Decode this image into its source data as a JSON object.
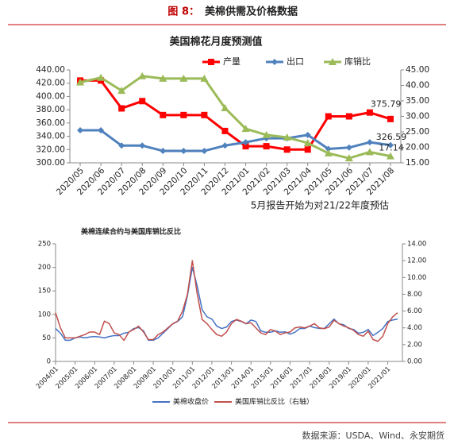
{
  "header": {
    "label": "图 8：",
    "title": "美棉供需及价格数据"
  },
  "chart_data": [
    {
      "type": "line",
      "title": "美国棉花月度预测值",
      "categories": [
        "2020/05",
        "2020/06",
        "2020/07",
        "2020/08",
        "2020/09",
        "2020/10",
        "2020/11",
        "2020/12",
        "2021/01",
        "2021/02",
        "2021/03",
        "2021/04",
        "2021/05",
        "2021/06",
        "2021/07",
        "2021/08"
      ],
      "series": [
        {
          "name": "产量",
          "color": "#ff0000",
          "marker": "square",
          "axis": "y",
          "values": [
            424,
            424,
            382,
            393,
            372,
            372,
            372,
            348,
            325,
            325,
            320,
            320,
            370,
            370,
            375.79,
            366
          ],
          "value_labels": [
            null,
            null,
            null,
            null,
            null,
            null,
            null,
            null,
            null,
            null,
            null,
            null,
            null,
            null,
            "375.79",
            null
          ]
        },
        {
          "name": "出口",
          "color": "#4f81bd",
          "marker": "diamond",
          "axis": "y",
          "values": [
            349,
            349,
            326,
            326,
            318,
            318,
            318,
            326,
            331,
            337,
            337,
            342,
            321,
            323,
            331,
            326.59
          ],
          "value_labels": [
            null,
            null,
            null,
            null,
            null,
            null,
            null,
            null,
            null,
            null,
            null,
            null,
            null,
            null,
            null,
            "326.59"
          ]
        },
        {
          "name": "库销比",
          "color": "#9bbb59",
          "marker": "triangle",
          "axis": "y2",
          "values": [
            41,
            42.5,
            38.3,
            43,
            42.2,
            42.2,
            42.2,
            32.7,
            26,
            24,
            23.2,
            21.4,
            18.1,
            16.5,
            18.5,
            17.14
          ],
          "value_labels": [
            null,
            null,
            null,
            null,
            null,
            null,
            null,
            null,
            null,
            null,
            null,
            null,
            null,
            null,
            null,
            "17.14"
          ]
        }
      ],
      "ylim": [
        300,
        440
      ],
      "yticks": [
        {
          "value": 300,
          "label": "300.00"
        },
        {
          "value": 320,
          "label": "320.00"
        },
        {
          "value": 340,
          "label": "340.00"
        },
        {
          "value": 360,
          "label": "360.00"
        },
        {
          "value": 380,
          "label": "380.00"
        },
        {
          "value": 400,
          "label": "400.00"
        },
        {
          "value": 420,
          "label": "420.00"
        },
        {
          "value": 440,
          "label": "440.00"
        }
      ],
      "y2lim": [
        15,
        45
      ],
      "y2ticks": [
        {
          "value": 15,
          "label": "15.00"
        },
        {
          "value": 20,
          "label": "20.00"
        },
        {
          "value": 25,
          "label": "25.00"
        },
        {
          "value": 30,
          "label": "30.00"
        },
        {
          "value": 35,
          "label": "35.00"
        },
        {
          "value": 40,
          "label": "40.00"
        },
        {
          "value": 45,
          "label": "45.00"
        }
      ],
      "grid": false,
      "legend": "top",
      "annotation": "5月报告开始为对21/22年度预估"
    },
    {
      "type": "line",
      "title": "美棉连续合约与美国库销比反比",
      "x": [
        "2004/01",
        "2004/04",
        "2004/07",
        "2004/10",
        "2005/01",
        "2005/04",
        "2005/07",
        "2005/10",
        "2006/01",
        "2006/04",
        "2006/07",
        "2006/10",
        "2007/01",
        "2007/04",
        "2007/07",
        "2007/10",
        "2008/01",
        "2008/04",
        "2008/07",
        "2008/10",
        "2009/01",
        "2009/04",
        "2009/07",
        "2009/10",
        "2010/01",
        "2010/04",
        "2010/07",
        "2010/10",
        "2011/01",
        "2011/04",
        "2011/07",
        "2011/10",
        "2012/01",
        "2012/04",
        "2012/07",
        "2012/10",
        "2013/01",
        "2013/04",
        "2013/07",
        "2013/10",
        "2014/01",
        "2014/04",
        "2014/07",
        "2014/10",
        "2015/01",
        "2015/04",
        "2015/07",
        "2015/10",
        "2016/01",
        "2016/04",
        "2016/07",
        "2016/10",
        "2017/01",
        "2017/04",
        "2017/07",
        "2017/10",
        "2018/01",
        "2018/04",
        "2018/07",
        "2018/10",
        "2019/01",
        "2019/04",
        "2019/07",
        "2019/10",
        "2020/01",
        "2020/04",
        "2020/07",
        "2020/10",
        "2021/01",
        "2021/04",
        "2021/07"
      ],
      "series": [
        {
          "name": "美棉收盘价",
          "color": "#4472c4",
          "axis": "y",
          "values": [
            70,
            60,
            45,
            45,
            50,
            52,
            50,
            52,
            53,
            52,
            50,
            53,
            55,
            55,
            60,
            62,
            70,
            72,
            65,
            45,
            45,
            50,
            60,
            70,
            80,
            85,
            95,
            140,
            200,
            160,
            110,
            95,
            90,
            75,
            70,
            73,
            85,
            88,
            85,
            80,
            88,
            85,
            65,
            62,
            62,
            65,
            62,
            63,
            58,
            62,
            70,
            70,
            75,
            72,
            70,
            70,
            80,
            90,
            80,
            78,
            70,
            68,
            60,
            62,
            68,
            55,
            62,
            70,
            85,
            88,
            90
          ]
        },
        {
          "name": "美国库销比反比（右轴）",
          "color": "#c0504d",
          "axis": "y2",
          "values": [
            5.8,
            4.0,
            2.8,
            2.8,
            2.8,
            3.0,
            3.2,
            3.5,
            3.5,
            3.2,
            4.8,
            4.5,
            3.4,
            3.2,
            2.5,
            3.5,
            3.8,
            4.2,
            3.5,
            2.6,
            2.6,
            3.2,
            3.5,
            4.0,
            4.5,
            4.8,
            6.0,
            8.0,
            12,
            8,
            5,
            4.5,
            3.8,
            3.2,
            3.0,
            3.5,
            4.5,
            5,
            4.8,
            4.5,
            4.6,
            4.0,
            3.4,
            3.2,
            3.8,
            3.6,
            3.2,
            3.4,
            3.5,
            4,
            4.1,
            4,
            4.2,
            4.5,
            4,
            3.9,
            4.1,
            4.9,
            4.5,
            4.2,
            4,
            3.7,
            3.2,
            3,
            3.6,
            2.6,
            2.4,
            3.0,
            4.5,
            5.3,
            5.8
          ]
        }
      ],
      "xlim": [
        "2004/01",
        "2021/10"
      ],
      "xticks": [
        "2004/01",
        "2005/01",
        "2006/01",
        "2007/01",
        "2008/01",
        "2009/01",
        "2010/01",
        "2011/01",
        "2012/01",
        "2013/01",
        "2014/01",
        "2015/01",
        "2016/01",
        "2017/01",
        "2018/01",
        "2019/01",
        "2020/01",
        "2021/01"
      ],
      "ylim": [
        0,
        250
      ],
      "yticks": [
        0,
        50,
        100,
        150,
        200,
        250
      ],
      "y2lim": [
        0,
        14
      ],
      "y2ticks": [
        {
          "value": 0,
          "label": "0.00"
        },
        {
          "value": 2,
          "label": "2.00"
        },
        {
          "value": 4,
          "label": "4.00"
        },
        {
          "value": 6,
          "label": "6.00"
        },
        {
          "value": 8,
          "label": "8.00"
        },
        {
          "value": 10,
          "label": "10.00"
        },
        {
          "value": 12,
          "label": "12.00"
        },
        {
          "value": 14,
          "label": "14.00"
        }
      ],
      "grid": false,
      "legend": "bottom"
    }
  ],
  "source": "数据来源：USDA、Wind、永安期货"
}
